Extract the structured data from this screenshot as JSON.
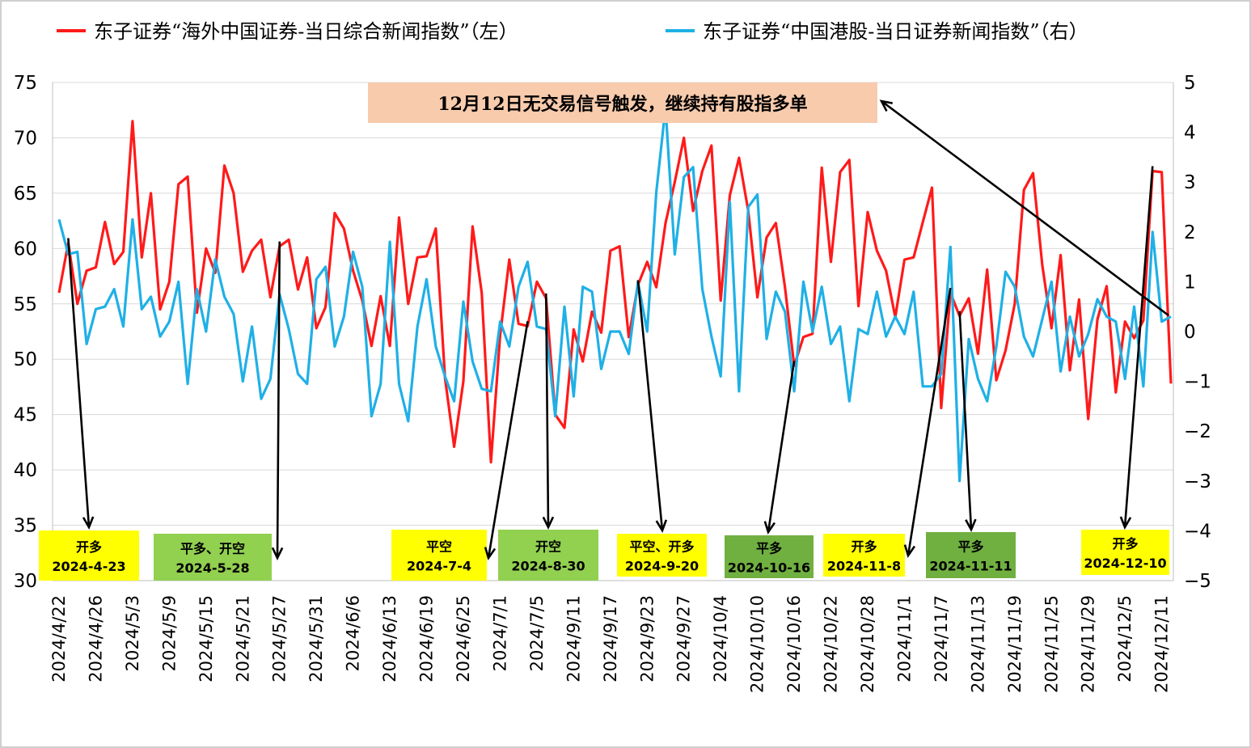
{
  "chart_data": {
    "type": "line",
    "legend": {
      "position": "top",
      "entries": [
        {
          "name": "东子证券“海外中国证券-当日综合新闻指数”（左）",
          "color": "#ff1a1a",
          "axis": "left"
        },
        {
          "name": "东子证券“中国港股-当日证券新闻指数”（右）",
          "color": "#1fb0e6",
          "axis": "right"
        }
      ]
    },
    "y_left": {
      "min": 30,
      "max": 75,
      "ticks": [
        "75",
        "70",
        "65",
        "60",
        "55",
        "50",
        "45",
        "40",
        "35",
        "30"
      ]
    },
    "y_right": {
      "min": -5,
      "max": 5,
      "ticks": [
        "5",
        "4",
        "3",
        "2",
        "1",
        "0",
        "−1",
        "−2",
        "−3",
        "−4",
        "−5"
      ]
    },
    "grid": true,
    "x_tick_labels": [
      "2024/4/22",
      "2024/4/26",
      "2024/5/3",
      "2024/5/9",
      "2024/5/15",
      "2024/5/21",
      "2024/5/27",
      "2024/5/31",
      "2024/6/6",
      "2024/6/13",
      "2024/6/19",
      "2024/6/25",
      "2024/7/1",
      "2024/7/5",
      "2024/9/11",
      "2024/9/17",
      "2024/9/23",
      "2024/9/27",
      "2024/10/4",
      "2024/10/10",
      "2024/10/16",
      "2024/10/22",
      "2024/10/28",
      "2024/11/1",
      "2024/11/7",
      "2024/11/13",
      "2024/11/19",
      "2024/11/25",
      "2024/11/29",
      "2024/12/5",
      "2024/12/11"
    ],
    "x_tick_step": 4,
    "series": [
      {
        "name": "东子证券“海外中国证券-当日综合新闻指数”（左）",
        "axis": "left",
        "color": "#ff1a1a",
        "values": [
          56.0,
          60.5,
          55.0,
          58.0,
          58.3,
          62.4,
          58.6,
          59.7,
          71.5,
          59.2,
          65.0,
          54.5,
          57.0,
          65.8,
          66.5,
          54.2,
          60.0,
          57.8,
          67.5,
          65.0,
          57.9,
          59.8,
          60.8,
          55.6,
          60.2,
          60.8,
          56.3,
          59.2,
          52.8,
          54.7,
          63.2,
          61.8,
          58.0,
          55.3,
          51.2,
          55.7,
          51.2,
          62.8,
          55.0,
          59.2,
          59.3,
          61.8,
          48.3,
          42.1,
          48.0,
          62.0,
          56.0,
          40.7,
          52.2,
          59.0,
          53.2,
          53.0,
          57.0,
          55.5,
          45.0,
          43.8,
          52.7,
          49.8,
          54.3,
          52.4,
          59.8,
          60.2,
          52.0,
          56.7,
          58.8,
          56.5,
          62.3,
          66.0,
          70.0,
          63.4,
          67.0,
          69.3,
          55.3,
          64.8,
          68.2,
          63.4,
          55.6,
          61.0,
          62.3,
          56.5,
          49.4,
          52.0,
          52.3,
          67.3,
          58.8,
          66.9,
          68.0,
          54.8,
          63.3,
          59.8,
          58.0,
          53.8,
          59.0,
          59.2,
          62.4,
          65.5,
          45.6,
          56.0,
          53.9,
          55.5,
          50.5,
          58.1,
          48.1,
          50.8,
          55.0,
          65.3,
          66.8,
          58.5,
          52.8,
          59.4,
          49.0,
          55.4,
          44.6,
          53.6,
          56.6,
          47.0,
          53.4,
          51.9,
          53.5,
          67.0,
          66.9,
          47.8
        ]
      },
      {
        "name": "东子证券“中国港股-当日证券新闻指数”（右）",
        "axis": "right",
        "color": "#1fb0e6",
        "values": [
          2.25,
          1.55,
          1.6,
          -0.25,
          0.45,
          0.5,
          0.85,
          0.1,
          2.25,
          0.45,
          0.7,
          -0.1,
          0.2,
          1.0,
          -1.05,
          0.85,
          0.0,
          1.45,
          0.7,
          0.35,
          -1.0,
          0.1,
          -1.35,
          -0.95,
          0.75,
          0.05,
          -0.85,
          -1.05,
          1.05,
          1.3,
          -0.3,
          0.3,
          1.6,
          0.9,
          -1.7,
          -1.05,
          1.8,
          -1.05,
          -1.8,
          0.1,
          1.05,
          -0.3,
          -0.9,
          -1.4,
          0.6,
          -0.6,
          -1.15,
          -1.2,
          0.2,
          -0.3,
          0.9,
          1.4,
          0.1,
          0.05,
          -1.7,
          0.5,
          -1.3,
          0.9,
          0.8,
          -0.75,
          0.0,
          0.0,
          -0.45,
          1.0,
          0.0,
          2.8,
          4.5,
          1.55,
          3.1,
          3.3,
          0.85,
          -0.1,
          -0.9,
          2.6,
          -1.2,
          2.5,
          2.75,
          -0.15,
          0.8,
          0.4,
          -1.2,
          1.0,
          0.0,
          0.9,
          -0.25,
          0.1,
          -1.4,
          0.05,
          -0.05,
          0.8,
          -0.1,
          0.3,
          -0.05,
          0.8,
          -1.1,
          -1.1,
          -0.85,
          1.7,
          -3.0,
          -0.15,
          -0.95,
          -1.4,
          -0.3,
          1.2,
          0.9,
          -0.1,
          -0.5,
          0.25,
          1.0,
          -0.8,
          0.3,
          -0.5,
          -0.05,
          0.65,
          0.3,
          0.2,
          -0.95,
          0.5,
          -1.1,
          2.0,
          0.2,
          0.3
        ]
      }
    ],
    "annotations": [
      {
        "label": "开多",
        "date": "2024-4-23",
        "index": 1,
        "box": "yellow"
      },
      {
        "label": "平多、开空",
        "date": "2024-5-28",
        "index": 24,
        "box": "green-light"
      },
      {
        "label": "平空",
        "date": "2024-7-4",
        "index": 51,
        "box": "yellow"
      },
      {
        "label": "开空",
        "date": "2024-8-30",
        "index": 53,
        "box": "green-light"
      },
      {
        "label": "平空、开多",
        "date": "2024-9-20",
        "index": 63,
        "box": "yellow"
      },
      {
        "label": "平多",
        "date": "2024-10-16",
        "index": 80,
        "box": "green-dark"
      },
      {
        "label": "开多",
        "date": "2024-11-8",
        "index": 97,
        "box": "yellow"
      },
      {
        "label": "平多",
        "date": "2024-11-11",
        "index": 98,
        "box": "green-dark"
      },
      {
        "label": "开多",
        "date": "2024-12-10",
        "index": 119,
        "box": "yellow"
      }
    ],
    "callout": {
      "text": "12月12日无交易信号触发，继续持有股指多单"
    }
  },
  "colors": {
    "yellow": "#ffff00",
    "green-light": "#92d050",
    "green-dark": "#70b040",
    "callout_bg": "#f8cbad",
    "grid": "#d9d9d9"
  }
}
